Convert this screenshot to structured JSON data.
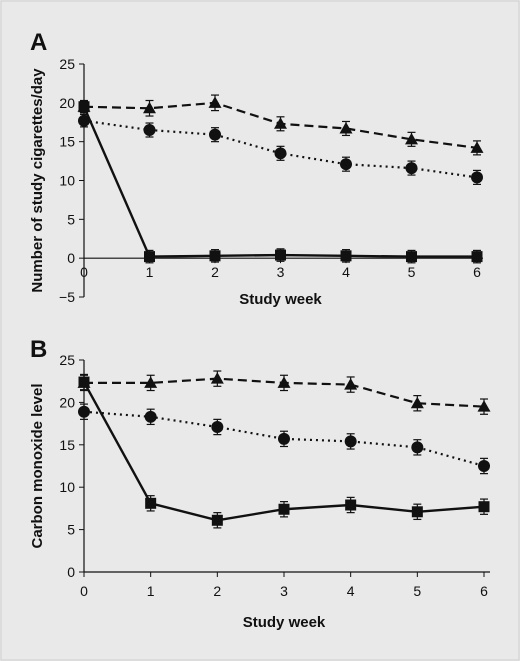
{
  "chart_data": [
    {
      "type": "line",
      "panel_label": "A",
      "xlabel": "Study week",
      "ylabel": "Number of study cigarettes/day",
      "xlim": [
        0,
        6
      ],
      "ylim": [
        -5,
        25
      ],
      "x_ticks": [
        "0",
        "1",
        "2",
        "3",
        "4",
        "5",
        "6"
      ],
      "y_ticks": [
        "25",
        "20",
        "15",
        "10",
        "5",
        "0",
        "−5"
      ],
      "y_tick_values": [
        25,
        20,
        15,
        10,
        5,
        0,
        -5
      ],
      "x": [
        0,
        1,
        2,
        3,
        4,
        5,
        6
      ],
      "series": [
        {
          "style": "dashed",
          "marker": "triangle",
          "values": [
            19.5,
            19.3,
            20.0,
            17.3,
            16.7,
            15.3,
            14.2
          ],
          "err": [
            0.8,
            1.0,
            1.0,
            0.9,
            0.9,
            0.9,
            0.9
          ]
        },
        {
          "style": "dotted",
          "marker": "circle",
          "values": [
            17.7,
            16.5,
            15.9,
            13.5,
            12.1,
            11.6,
            10.4
          ],
          "err": [
            0.8,
            0.9,
            0.9,
            0.9,
            0.9,
            0.9,
            0.9
          ]
        },
        {
          "style": "solid",
          "marker": "square",
          "values": [
            19.5,
            0.2,
            0.3,
            0.4,
            0.3,
            0.2,
            0.2
          ],
          "err": [
            0.7,
            0.8,
            0.8,
            0.8,
            0.8,
            0.8,
            0.8
          ]
        }
      ]
    },
    {
      "type": "line",
      "panel_label": "B",
      "xlabel": "Study week",
      "ylabel": "Carbon monoxide level",
      "xlim": [
        0,
        6
      ],
      "ylim": [
        0,
        25
      ],
      "x_ticks": [
        "0",
        "1",
        "2",
        "3",
        "4",
        "5",
        "6"
      ],
      "y_ticks": [
        "25",
        "20",
        "15",
        "10",
        "5",
        "0"
      ],
      "y_tick_values": [
        25,
        20,
        15,
        10,
        5,
        0
      ],
      "x": [
        0,
        1,
        2,
        3,
        4,
        5,
        6
      ],
      "series": [
        {
          "style": "dashed",
          "marker": "triangle",
          "values": [
            22.3,
            22.3,
            22.8,
            22.3,
            22.1,
            19.9,
            19.5
          ],
          "err": [
            0.9,
            0.9,
            0.9,
            0.9,
            0.9,
            0.9,
            0.9
          ]
        },
        {
          "style": "dotted",
          "marker": "circle",
          "values": [
            18.9,
            18.3,
            17.1,
            15.7,
            15.4,
            14.7,
            12.5
          ],
          "err": [
            0.9,
            0.9,
            0.9,
            0.9,
            0.9,
            0.9,
            0.9
          ]
        },
        {
          "style": "solid",
          "marker": "square",
          "values": [
            22.4,
            8.1,
            6.1,
            7.4,
            7.9,
            7.1,
            7.7
          ],
          "err": [
            0.9,
            0.9,
            0.9,
            0.9,
            0.9,
            0.9,
            0.9
          ]
        }
      ]
    }
  ]
}
